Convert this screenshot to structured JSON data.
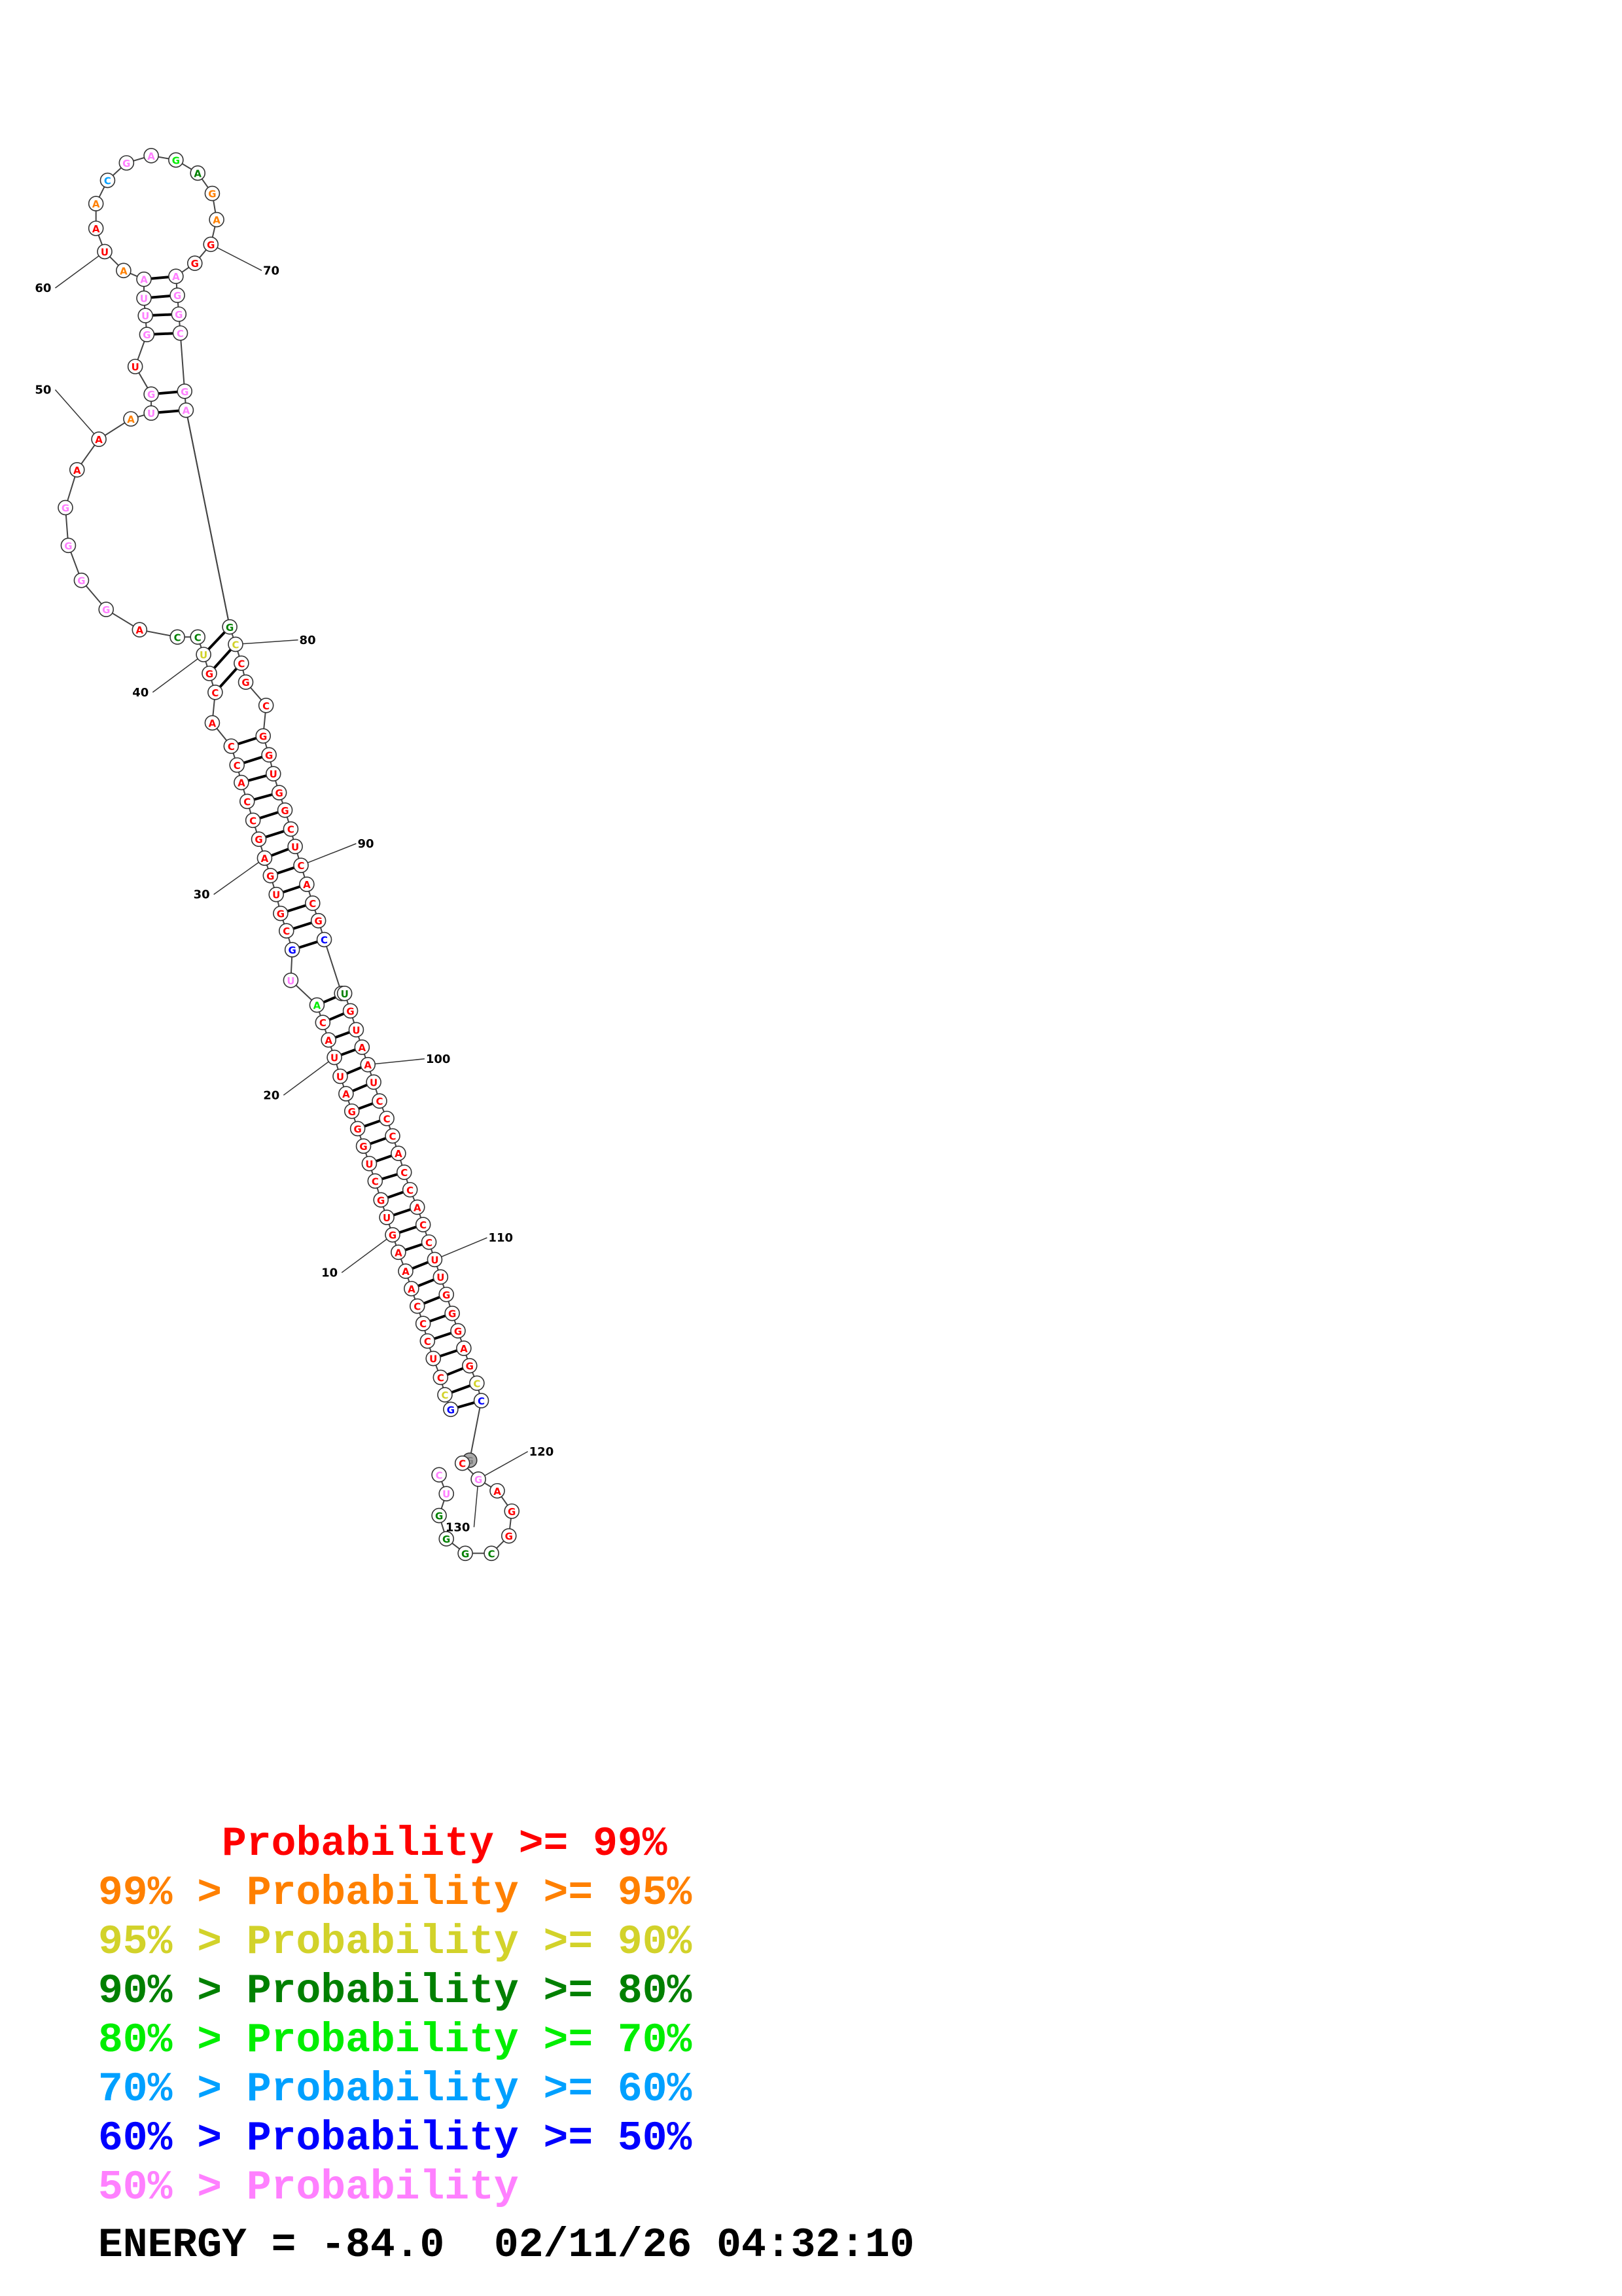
{
  "diagram": {
    "position_labels": [
      "10",
      "20",
      "30",
      "40",
      "50",
      "60",
      "70",
      "80",
      "90",
      "100",
      "110",
      "120",
      "130"
    ],
    "colors": {
      "p99": "#ff0000",
      "p95": "#ff8000",
      "p90": "#d2d22a",
      "p80": "#008000",
      "p70": "#00ee00",
      "p60": "#00a0ff",
      "p50": "#0000ff",
      "low": "#ff80ff"
    }
  },
  "legend": [
    {
      "prefix": "     ",
      "text": "Probability >= 99%",
      "color": "#ff0000"
    },
    {
      "prefix": "99% > ",
      "text": "Probability >= 95%",
      "color": "#ff8000"
    },
    {
      "prefix": "95% > ",
      "text": "Probability >= 90%",
      "color": "#d2d22a"
    },
    {
      "prefix": "90% > ",
      "text": "Probability >= 80%",
      "color": "#008000"
    },
    {
      "prefix": "80% > ",
      "text": "Probability >= 70%",
      "color": "#00ee00"
    },
    {
      "prefix": "70% > ",
      "text": "Probability >= 60%",
      "color": "#00a0ff"
    },
    {
      "prefix": "60% > ",
      "text": "Probability >= 50%",
      "color": "#0000ff"
    },
    {
      "prefix": "50% > ",
      "text": "Probability",
      "color": "#ff80ff"
    }
  ],
  "energy": {
    "text": "ENERGY = -84.0  02/11/26 04:32:10"
  }
}
